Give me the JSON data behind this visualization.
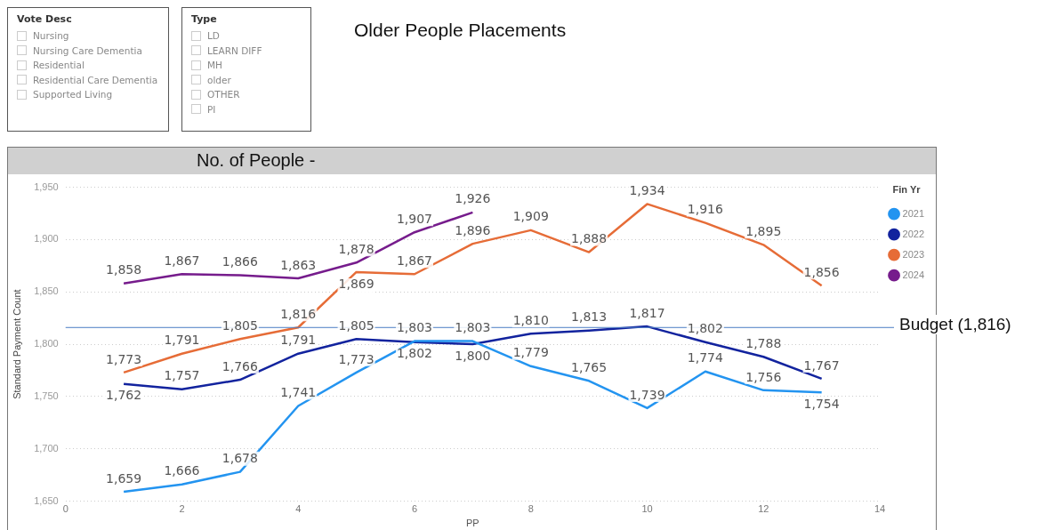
{
  "chart_data": [
    {
      "type": "other",
      "title": "Vote Desc",
      "annotations": [
        "Nursing",
        "Nursing Care Dementia",
        "Residential",
        "Residential Care Dementia",
        "Supported Living"
      ]
    },
    {
      "type": "other",
      "title": "Type",
      "annotations": [
        "LD",
        "LEARN DIFF",
        "MH",
        "older",
        "OTHER",
        "PI"
      ]
    },
    {
      "type": "line",
      "title": "Older People Placements",
      "subtitle": "No. of People -",
      "xlabel": "PP",
      "ylabel": "Standard Payment Count",
      "legend_title": "Fin Yr",
      "x": [
        1,
        2,
        3,
        4,
        5,
        6,
        7,
        8,
        9,
        10,
        11,
        12,
        13
      ],
      "series": [
        {
          "name": "2021",
          "color": "#2394f0",
          "values": [
            1659,
            1666,
            1678,
            1741,
            1773,
            1803,
            1803,
            1779,
            1765,
            1739,
            1774,
            1756,
            1754
          ],
          "value_labels": [
            "1,659",
            "1,666",
            "1,678",
            "1,741",
            "1,773",
            "1,803",
            "1,803",
            "1,779",
            "1,765",
            "1,739",
            "1,774",
            "1,756",
            "1,754"
          ]
        },
        {
          "name": "2022",
          "color": "#12239e",
          "values": [
            1762,
            1757,
            1766,
            1791,
            1805,
            1802,
            1800,
            1810,
            1813,
            1817,
            1802,
            1788,
            1767
          ],
          "value_labels": [
            "1,762",
            "1,757",
            "1,766",
            "1,791",
            "1,805",
            "1,802",
            "1,800",
            "1,810",
            "1,813",
            "1,817",
            "1,802",
            "1,788",
            "1,767"
          ]
        },
        {
          "name": "2023",
          "color": "#e66c37",
          "values": [
            1773,
            1791,
            1805,
            1816,
            1869,
            1867,
            1896,
            1909,
            1888,
            1934,
            1916,
            1895,
            1856
          ],
          "value_labels": [
            "1,773",
            "1,791",
            "1,805",
            "1,816",
            "1,869",
            "1,867",
            "1,896",
            "1,909",
            "1,888",
            "1,934",
            "1,916",
            "1,895",
            "1,856"
          ]
        },
        {
          "name": "2024",
          "color": "#761c8c",
          "values": [
            1858,
            1867,
            1866,
            1863,
            1878,
            1907,
            1926,
            null,
            null,
            null,
            null,
            null,
            null
          ],
          "value_labels": [
            "1,858",
            "1,867",
            "1,866",
            "1,863",
            "1,878",
            "1,907",
            "1,926",
            null,
            null,
            null,
            null,
            null,
            null
          ]
        }
      ],
      "xlim": [
        0,
        14
      ],
      "xticks": [
        0,
        2,
        4,
        6,
        8,
        10,
        12,
        14
      ],
      "ylim": [
        1650,
        1950
      ],
      "yticks": [
        {
          "value": 1650,
          "label": "1,650"
        },
        {
          "value": 1700,
          "label": "1,700"
        },
        {
          "value": 1750,
          "label": "1,750"
        },
        {
          "value": 1800,
          "label": "1,800"
        },
        {
          "value": 1850,
          "label": "1,850"
        },
        {
          "value": 1900,
          "label": "1,900"
        },
        {
          "value": 1950,
          "label": "1,950"
        }
      ],
      "ref_lines": [
        {
          "axis": "y",
          "value": 1816,
          "label": "Budget (1,816)",
          "color": "#4a7cc4"
        }
      ],
      "grid": "y",
      "legend": "top right",
      "marker": "none",
      "line_style": "solid"
    }
  ]
}
